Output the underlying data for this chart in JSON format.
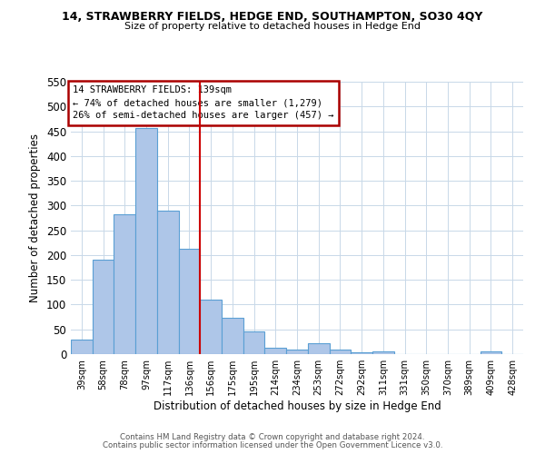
{
  "title": "14, STRAWBERRY FIELDS, HEDGE END, SOUTHAMPTON, SO30 4QY",
  "subtitle": "Size of property relative to detached houses in Hedge End",
  "xlabel": "Distribution of detached houses by size in Hedge End",
  "ylabel": "Number of detached properties",
  "bar_labels": [
    "39sqm",
    "58sqm",
    "78sqm",
    "97sqm",
    "117sqm",
    "136sqm",
    "156sqm",
    "175sqm",
    "195sqm",
    "214sqm",
    "234sqm",
    "253sqm",
    "272sqm",
    "292sqm",
    "311sqm",
    "331sqm",
    "350sqm",
    "370sqm",
    "389sqm",
    "409sqm",
    "428sqm"
  ],
  "bar_values": [
    30,
    190,
    283,
    457,
    290,
    213,
    110,
    74,
    46,
    13,
    9,
    22,
    9,
    4,
    5,
    0,
    0,
    0,
    0,
    5,
    0
  ],
  "bar_color": "#aec6e8",
  "bar_edgecolor": "#5a9fd4",
  "vline_x": 5.5,
  "vline_color": "#cc0000",
  "ylim": [
    0,
    550
  ],
  "yticks": [
    0,
    50,
    100,
    150,
    200,
    250,
    300,
    350,
    400,
    450,
    500,
    550
  ],
  "annotation_title": "14 STRAWBERRY FIELDS: 139sqm",
  "annotation_line1": "← 74% of detached houses are smaller (1,279)",
  "annotation_line2": "26% of semi-detached houses are larger (457) →",
  "annotation_box_color": "#aa0000",
  "grid_color": "#c8d8e8",
  "footer1": "Contains HM Land Registry data © Crown copyright and database right 2024.",
  "footer2": "Contains public sector information licensed under the Open Government Licence v3.0."
}
